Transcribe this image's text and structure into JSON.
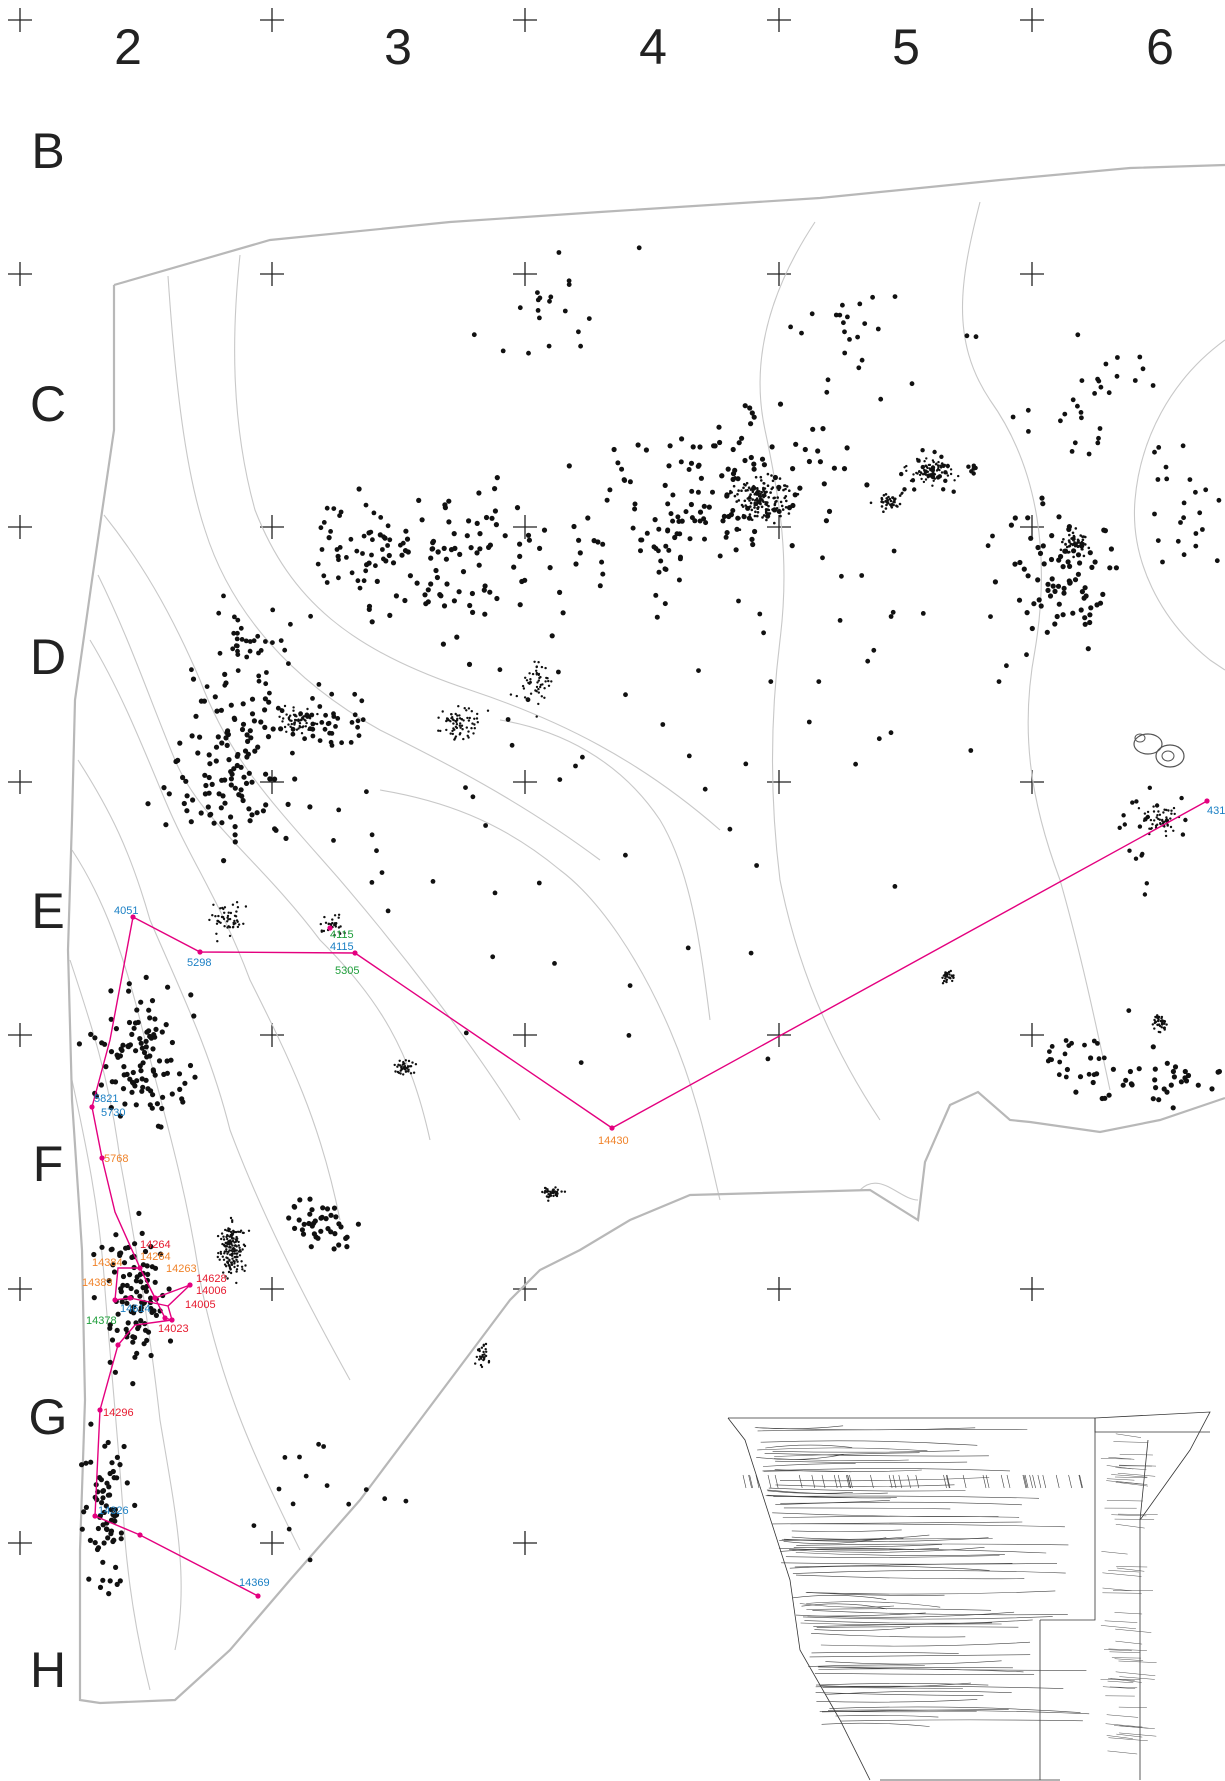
{
  "grid": {
    "columns": [
      "2",
      "3",
      "4",
      "5",
      "6"
    ],
    "rows": [
      "B",
      "C",
      "D",
      "E",
      "F",
      "G",
      "H"
    ]
  },
  "colors": {
    "route": "#e4007f",
    "blue": "#1a7fc4",
    "orange": "#f0832a",
    "red": "#e6192e",
    "green": "#1e9e3a",
    "outline": "#b8b8b8",
    "artifact": "#111111"
  },
  "points": [
    {
      "label": "4051",
      "color": "blue"
    },
    {
      "label": "5298",
      "color": "blue"
    },
    {
      "label": "4115",
      "color": "green"
    },
    {
      "label": "4115",
      "color": "blue"
    },
    {
      "label": "5305",
      "color": "green"
    },
    {
      "label": "14430",
      "color": "orange"
    },
    {
      "label": "431",
      "color": "blue"
    },
    {
      "label": "5821",
      "color": "blue"
    },
    {
      "label": "5730",
      "color": "blue"
    },
    {
      "label": "5768",
      "color": "orange"
    },
    {
      "label": "14264",
      "color": "red"
    },
    {
      "label": "14264",
      "color": "orange"
    },
    {
      "label": "14263",
      "color": "orange"
    },
    {
      "label": "14384",
      "color": "orange"
    },
    {
      "label": "14383",
      "color": "orange"
    },
    {
      "label": "14628",
      "color": "red"
    },
    {
      "label": "14006",
      "color": "red"
    },
    {
      "label": "14005",
      "color": "red"
    },
    {
      "label": "14614",
      "color": "blue"
    },
    {
      "label": "14378",
      "color": "green"
    },
    {
      "label": "14023",
      "color": "red"
    },
    {
      "label": "14296",
      "color": "red"
    },
    {
      "label": "14326",
      "color": "blue"
    },
    {
      "label": "14369",
      "color": "blue"
    }
  ]
}
